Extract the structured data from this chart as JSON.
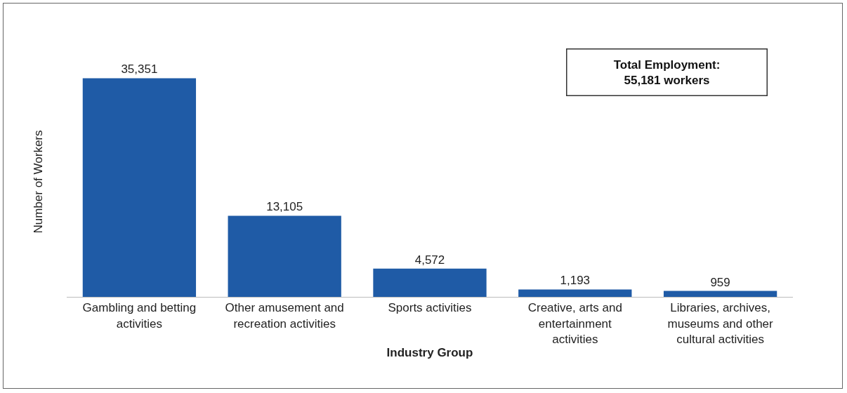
{
  "chart_data": {
    "type": "bar",
    "xlabel": "Industry Group",
    "ylabel": "Number of Workers",
    "categories": [
      "Gambling and betting activities",
      "Other amusement and recreation activities",
      "Sports activities",
      "Creative, arts and entertainment activities",
      "Libraries, archives, museums and other cultural activities"
    ],
    "values": [
      35351,
      13105,
      4572,
      1193,
      959
    ],
    "color": "#1f5ba6",
    "value_labels": [
      "35,351",
      "13,105",
      "4,572",
      "1,193",
      "959"
    ],
    "tick_labels": "x",
    "grid": false,
    "legend": false,
    "annotations": [
      "Total Employment:\n55,181 workers"
    ]
  }
}
